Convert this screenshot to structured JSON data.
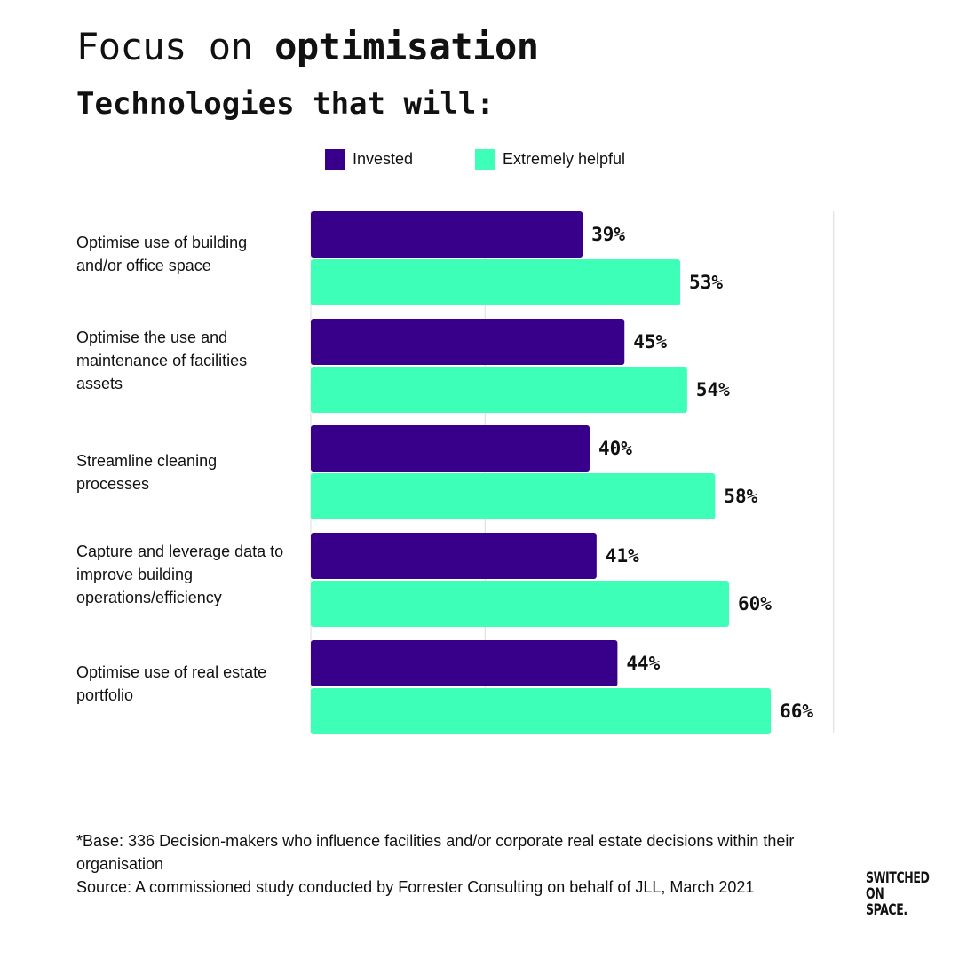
{
  "heading": {
    "title_plain": "Focus on",
    "title_bold": "optimisation",
    "subtitle": "Technologies that will:"
  },
  "legend": [
    {
      "name": "Invested",
      "color": "#38008a"
    },
    {
      "name": "Extremely helpful",
      "color": "#3effb8"
    }
  ],
  "chart_data": {
    "type": "bar",
    "orientation": "horizontal",
    "categories": [
      "Optimise use of building and/or office space",
      "Optimise the use and maintenance of facilities assets",
      "Streamline cleaning processes",
      "Capture and leverage data to improve building operations/efficiency",
      "Optimise use of real estate portfolio"
    ],
    "series": [
      {
        "name": "Invested",
        "values": [
          39,
          45,
          40,
          41,
          44
        ],
        "color": "#38008a"
      },
      {
        "name": "Extremely helpful",
        "values": [
          53,
          54,
          58,
          60,
          66
        ],
        "color": "#3effb8"
      }
    ],
    "value_suffix": "%",
    "xlim": [
      0,
      75
    ],
    "grid": true,
    "legend_position": "top"
  },
  "labels": {
    "cat0_line1": "Optimise use of building",
    "cat0_line2": "and/or office space",
    "cat1_line1": "Optimise the use and",
    "cat1_line2": "maintenance of facilities",
    "cat1_line3": "assets",
    "cat2_line1": "Streamline cleaning",
    "cat2_line2": "processes",
    "cat3_line1": "Capture and leverage data to",
    "cat3_line2": "improve building",
    "cat3_line3": "operations/efficiency",
    "cat4_line1": "Optimise use of real estate",
    "cat4_line2": "portfolio"
  },
  "footnote": {
    "base": "*Base: 336 Decision-makers who influence facilities and/or corporate real estate decisions within their organisation",
    "source": "Source: A commissioned study conducted by Forrester Consulting on behalf of JLL, March 2021"
  },
  "logo": {
    "line1": "SWITCHED",
    "line2": "ON",
    "line3": "SPACE."
  }
}
